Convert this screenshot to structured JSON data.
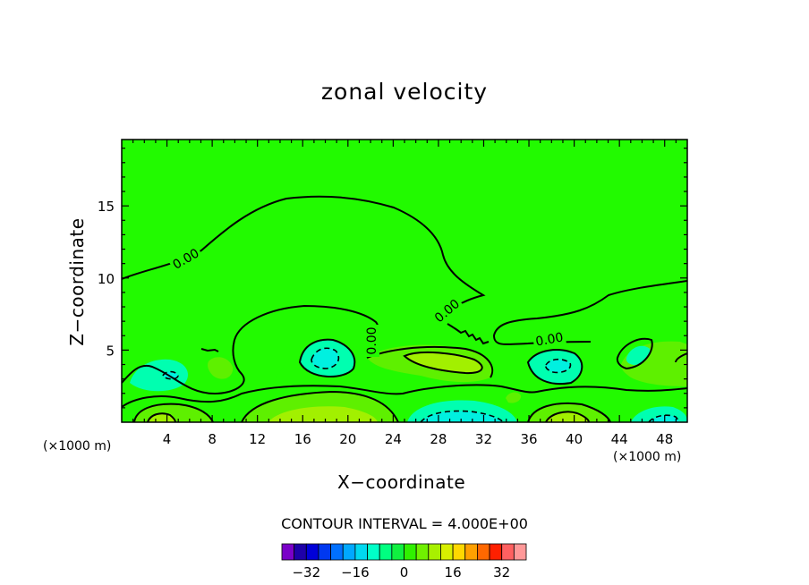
{
  "chart_data": {
    "type": "contour",
    "title": "zonal velocity",
    "xlabel": "X−coordinate",
    "ylabel": "Z−coordinate",
    "x_unit_left": "(×1000 m)",
    "x_unit_right": "(×1000 m)",
    "x_ticks": [
      "4",
      "8",
      "12",
      "16",
      "20",
      "24",
      "28",
      "32",
      "36",
      "40",
      "44",
      "48"
    ],
    "y_ticks": [
      "5",
      "10",
      "15"
    ],
    "xlim": [
      0,
      50
    ],
    "ylim": [
      0,
      19.6
    ],
    "contour_interval_text": "CONTOUR INTERVAL = 4.000E+00",
    "contour_interval": 4,
    "contour_labels": [
      "0.00",
      "0.00",
      "0.00",
      "0.00"
    ],
    "colorbar": {
      "tick_labels": [
        "−32",
        "−16",
        "0",
        "16",
        "32"
      ],
      "levels": [
        -36,
        -32,
        -28,
        -24,
        -20,
        -16,
        -12,
        -8,
        -4,
        0,
        4,
        8,
        12,
        16,
        20,
        24,
        28,
        32,
        36
      ],
      "colors": [
        "#7a00c8",
        "#1e00a8",
        "#0000d8",
        "#0038f0",
        "#0070ff",
        "#00a8ff",
        "#00d8f0",
        "#00ffc8",
        "#00ff80",
        "#10f040",
        "#30f000",
        "#70f000",
        "#a8f000",
        "#d8f000",
        "#ffd800",
        "#ffa000",
        "#ff6800",
        "#ff2000",
        "#ff6060",
        "#ff9898"
      ]
    },
    "grid": false,
    "fill_colors": {
      "zero": "#22fa00",
      "pos_4": "#5ef000",
      "pos_8": "#a2f000",
      "neg_4": "#00fe5c",
      "neg_8": "#00ffb0",
      "neg_12": "#00f0e0"
    }
  }
}
